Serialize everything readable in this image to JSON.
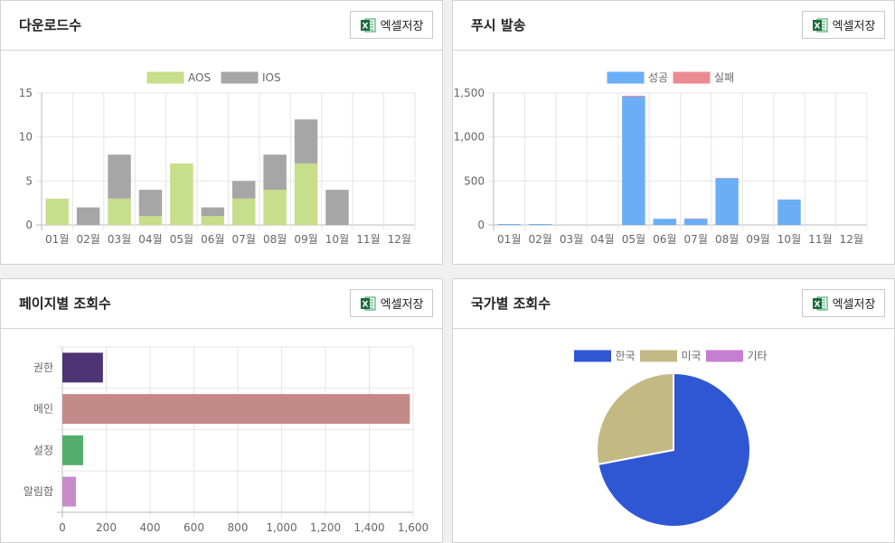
{
  "panels": {
    "downloads": {
      "title": "다운로드수",
      "excel_label": "엑셀저장"
    },
    "push": {
      "title": "푸시 발송",
      "excel_label": "엑셀저장"
    },
    "pages": {
      "title": "페이지별 조회수",
      "excel_label": "엑셀저장"
    },
    "country": {
      "title": "국가별 조회수",
      "excel_label": "엑셀저장"
    }
  },
  "icons": {
    "excel": "excel-icon"
  },
  "colors": {
    "excel_dark": "#1e6e3c",
    "excel_light": "#2e9b57"
  },
  "chart_data": [
    {
      "id": "downloads",
      "type": "bar",
      "stacked": true,
      "categories": [
        "01월",
        "02월",
        "03월",
        "04월",
        "05월",
        "06월",
        "07월",
        "08월",
        "09월",
        "10월",
        "11월",
        "12월"
      ],
      "series": [
        {
          "name": "AOS",
          "color": "#c7de8b",
          "values": [
            3,
            0,
            3,
            1,
            7,
            1,
            3,
            4,
            7,
            0,
            0,
            0
          ]
        },
        {
          "name": "IOS",
          "color": "#a6a6a6",
          "values": [
            0,
            2,
            5,
            3,
            0,
            1,
            2,
            4,
            5,
            4,
            0,
            0
          ]
        }
      ],
      "ylim": [
        0,
        15
      ],
      "yticks": [
        0,
        5,
        10,
        15
      ],
      "grid": true,
      "legend": "top"
    },
    {
      "id": "push",
      "type": "bar",
      "stacked": true,
      "categories": [
        "01월",
        "02월",
        "03월",
        "04월",
        "05월",
        "06월",
        "07월",
        "08월",
        "09월",
        "10월",
        "11월",
        "12월"
      ],
      "series": [
        {
          "name": "성공",
          "color": "#6aaef6",
          "values": [
            10,
            10,
            0,
            0,
            1460,
            70,
            70,
            530,
            0,
            290,
            0,
            0
          ]
        },
        {
          "name": "실패",
          "color": "#ec8a92",
          "values": [
            0,
            0,
            0,
            0,
            10,
            0,
            5,
            5,
            0,
            0,
            0,
            0
          ]
        }
      ],
      "ylim": [
        0,
        1500
      ],
      "yticks": [
        0,
        500,
        1000,
        1500
      ],
      "ytick_labels": [
        "0",
        "500",
        "1,000",
        "1,500"
      ],
      "grid": true,
      "legend": "top"
    },
    {
      "id": "pages",
      "type": "bar",
      "orientation": "horizontal",
      "categories": [
        "권한",
        "메인",
        "설정",
        "알림함"
      ],
      "colors": [
        "#4d3575",
        "#c48a87",
        "#54ad6d",
        "#c78cc9"
      ],
      "values": [
        185,
        1585,
        95,
        62
      ],
      "xlim": [
        0,
        1600
      ],
      "xticks": [
        0,
        200,
        400,
        600,
        800,
        1000,
        1200,
        1400,
        1600
      ],
      "xtick_labels": [
        "0",
        "200",
        "400",
        "600",
        "800",
        "1,000",
        "1,200",
        "1,400",
        "1,600"
      ],
      "grid": true
    },
    {
      "id": "country",
      "type": "pie",
      "labels": [
        "한국",
        "미국",
        "기타"
      ],
      "colors": [
        "#2f57d4",
        "#c4b983",
        "#c57fd0"
      ],
      "values": [
        72,
        28,
        0
      ],
      "legend": "top"
    }
  ]
}
